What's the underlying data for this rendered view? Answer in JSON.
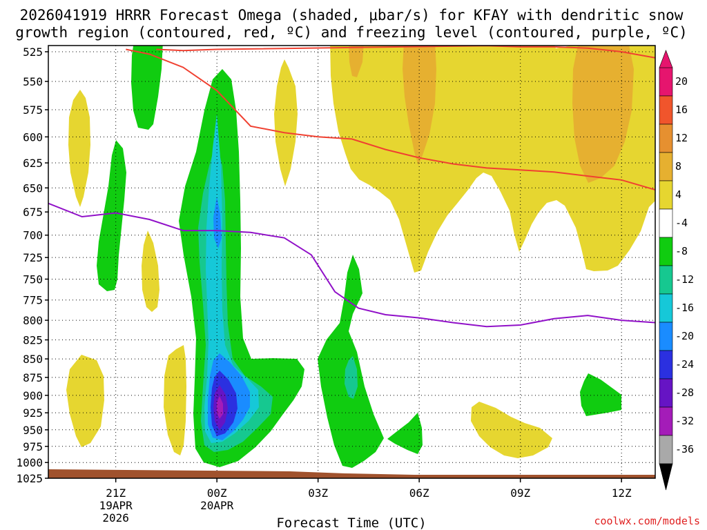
{
  "chart_data": {
    "type": "time-height contour",
    "title_line1": "2026041919 HRRR Forecast Omega (shaded, μbar/s) for KFAY with dendritic snow",
    "title_line2": "growth region (contoured, red, ºC) and freezing level (contoured, purple, ºC)",
    "xlabel": "Forecast Time (UTC)",
    "credit": "coolwx.com/models",
    "x_range_hours": [
      19,
      37
    ],
    "x_ticks": [
      {
        "hour": 21,
        "line1": "21Z",
        "line2": "19APR",
        "line3": "2026"
      },
      {
        "hour": 24,
        "line1": "00Z",
        "line2": "20APR",
        "line3": ""
      },
      {
        "hour": 27,
        "line1": "03Z",
        "line2": "",
        "line3": ""
      },
      {
        "hour": 30,
        "line1": "06Z",
        "line2": "",
        "line3": ""
      },
      {
        "hour": 33,
        "line1": "09Z",
        "line2": "",
        "line3": ""
      },
      {
        "hour": 36,
        "line1": "12Z",
        "line2": "",
        "line3": ""
      }
    ],
    "y_ticks_hpa": [
      "525",
      "550",
      "575",
      "600",
      "625",
      "650",
      "675",
      "700",
      "725",
      "750",
      "775",
      "800",
      "825",
      "850",
      "875",
      "900",
      "925",
      "950",
      "975",
      "1000",
      "1025"
    ],
    "colorbar_labels": [
      "20",
      "16",
      "12",
      "8",
      "4",
      "-4",
      "-8",
      "-12",
      "-16",
      "-20",
      "-24",
      "-28",
      "-32",
      "-36"
    ],
    "colorbar": {
      "levels": [
        -36,
        -32,
        -28,
        -24,
        -20,
        -16,
        -12,
        -8,
        -4,
        4,
        8,
        12,
        16,
        20
      ],
      "colors": [
        "#a9a9a9",
        "#a41cb8",
        "#6614c4",
        "#2b30e0",
        "#1a8cff",
        "#16c8d8",
        "#16c890",
        "#10cc10",
        "#ffffff",
        "#e6d630",
        "#e6b030",
        "#e69030",
        "#f0552c",
        "#e6156e"
      ]
    },
    "snow_growth_region_red": {
      "color": "#f04030",
      "upper": [
        [
          21.3,
          523
        ],
        [
          22,
          527
        ],
        [
          23,
          538
        ],
        [
          24,
          558
        ],
        [
          25,
          590
        ],
        [
          26,
          596
        ],
        [
          27,
          600
        ],
        [
          28,
          602
        ],
        [
          29,
          612
        ],
        [
          30,
          620
        ],
        [
          31,
          626
        ],
        [
          32,
          630
        ],
        [
          33,
          632
        ],
        [
          34,
          634
        ],
        [
          35,
          638
        ],
        [
          36,
          642
        ],
        [
          37,
          652
        ]
      ],
      "lower": [
        [
          22.2,
          523
        ],
        [
          23,
          524
        ],
        [
          24,
          523
        ],
        [
          32,
          520
        ],
        [
          33,
          521
        ],
        [
          34,
          521
        ],
        [
          35,
          522
        ],
        [
          36,
          525
        ],
        [
          37,
          530
        ]
      ]
    },
    "freezing_level_purple": {
      "color": "#9010c8",
      "points": [
        [
          19,
          666
        ],
        [
          20,
          680
        ],
        [
          21,
          676
        ],
        [
          22,
          683
        ],
        [
          23,
          695
        ],
        [
          24,
          695
        ],
        [
          25,
          697
        ],
        [
          26,
          703
        ],
        [
          26.8,
          722
        ],
        [
          27.5,
          765
        ],
        [
          28.2,
          785
        ],
        [
          29,
          793
        ],
        [
          30,
          797
        ],
        [
          31,
          803
        ],
        [
          32,
          808
        ],
        [
          33,
          806
        ],
        [
          34,
          798
        ],
        [
          35,
          794
        ],
        [
          36,
          800
        ],
        [
          37,
          803
        ]
      ]
    },
    "omega_features": [
      {
        "name": "updraft-core",
        "value": -30,
        "hour": 24.0,
        "hpa": 895
      },
      {
        "name": "upper-sinking-max",
        "value": 14,
        "hour": 35.2,
        "hpa": 560
      }
    ]
  }
}
